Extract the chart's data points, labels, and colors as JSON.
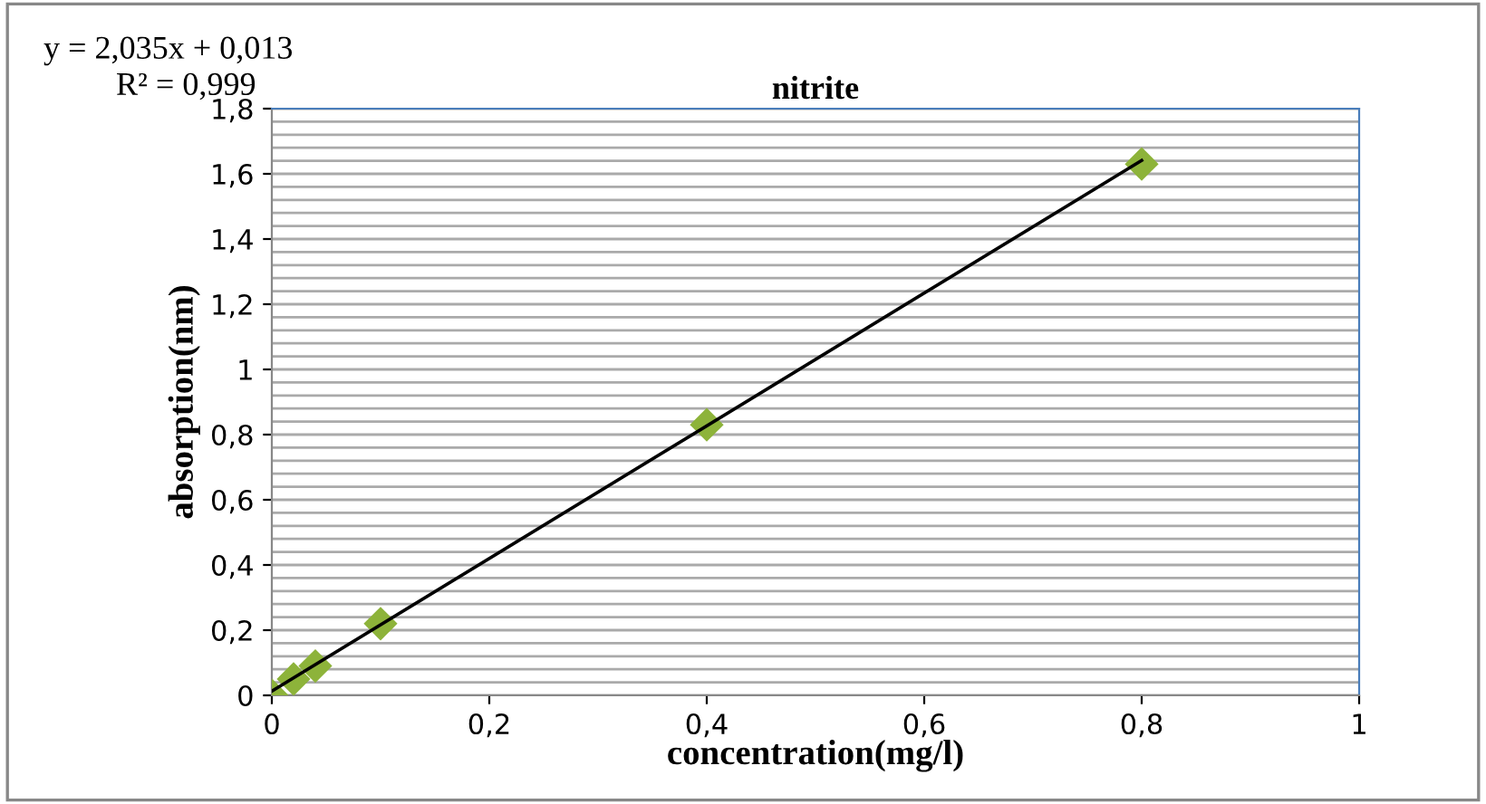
{
  "chart_data": {
    "type": "scatter",
    "title": "nitrite",
    "xlabel": "concentration(mg/l)",
    "ylabel": "absorption(nm)",
    "annotations": [
      "y = 2,035x + 0,013",
      "R² = 0,999"
    ],
    "series": [
      {
        "color": "#8db33a",
        "marker": "diamond",
        "x": [
          0,
          0.02,
          0.04,
          0.1,
          0.4,
          0.8
        ],
        "values": [
          0.0,
          0.05,
          0.09,
          0.22,
          0.83,
          1.63
        ]
      },
      {
        "type": "line",
        "color": "#000000",
        "marker": "none",
        "line_style": "solid",
        "x": [
          0,
          0.8
        ],
        "values": [
          0.013,
          1.641
        ]
      }
    ],
    "xlim": [
      0,
      1
    ],
    "xticks": [
      {
        "value": 0,
        "label": "0"
      },
      {
        "value": 0.2,
        "label": "0,2"
      },
      {
        "value": 0.4,
        "label": "0,4"
      },
      {
        "value": 0.6,
        "label": "0,6"
      },
      {
        "value": 0.8,
        "label": "0,8"
      },
      {
        "value": 1,
        "label": "1"
      }
    ],
    "ylim": [
      0,
      1.8
    ],
    "yticks": [
      {
        "value": 0,
        "label": "0"
      },
      {
        "value": 0.2,
        "label": "0,2"
      },
      {
        "value": 0.4,
        "label": "0,4"
      },
      {
        "value": 0.6,
        "label": "0,6"
      },
      {
        "value": 0.8,
        "label": "0,8"
      },
      {
        "value": 1,
        "label": "1"
      },
      {
        "value": 1.2,
        "label": "1,2"
      },
      {
        "value": 1.4,
        "label": "1,4"
      },
      {
        "value": 1.6,
        "label": "1,6"
      },
      {
        "value": 1.8,
        "label": "1,8"
      }
    ],
    "grid": "y",
    "legend": false
  }
}
